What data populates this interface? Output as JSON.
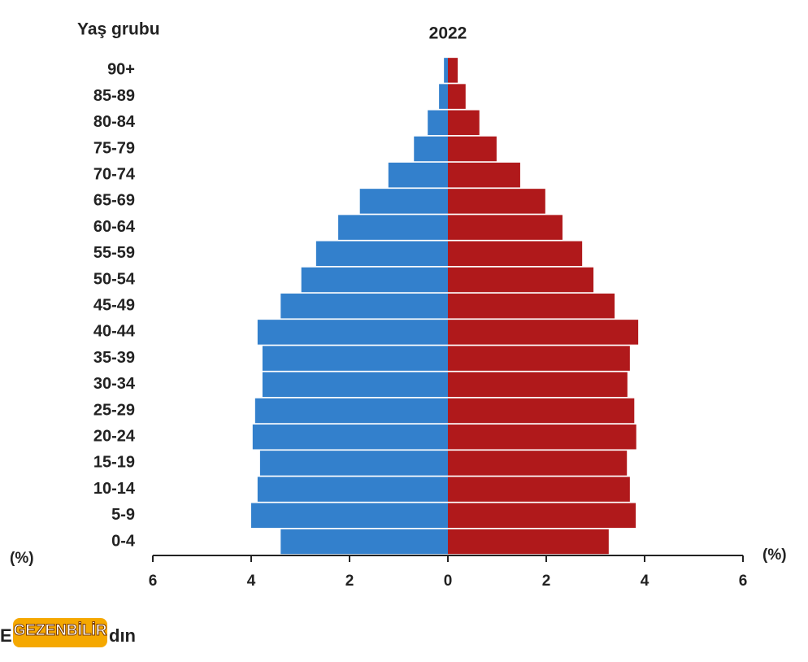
{
  "chart_data": {
    "type": "pyramid",
    "title": "2022",
    "y_label": "Yaş grubu",
    "x_label_left": "(%)",
    "x_label_right": "(%)",
    "categories": [
      "0-4",
      "5-9",
      "10-14",
      "15-19",
      "20-24",
      "25-29",
      "30-34",
      "35-39",
      "40-44",
      "45-49",
      "50-54",
      "55-59",
      "60-64",
      "65-69",
      "70-74",
      "75-79",
      "80-84",
      "85-89",
      "90+"
    ],
    "series": [
      {
        "side": "left",
        "color": "#3380cc",
        "values": [
          3.4,
          4.0,
          3.87,
          3.82,
          3.97,
          3.92,
          3.77,
          3.77,
          3.87,
          3.4,
          2.98,
          2.68,
          2.23,
          1.79,
          1.21,
          0.69,
          0.41,
          0.18,
          0.08
        ]
      },
      {
        "side": "right",
        "color": "#b0191b",
        "values": [
          3.27,
          3.82,
          3.7,
          3.64,
          3.83,
          3.79,
          3.65,
          3.7,
          3.87,
          3.39,
          2.96,
          2.73,
          2.33,
          1.98,
          1.47,
          0.99,
          0.64,
          0.36,
          0.2
        ]
      }
    ],
    "xlim": [
      -6,
      6
    ],
    "xticks": [
      {
        "value": -6,
        "label": "6"
      },
      {
        "value": -4,
        "label": "4"
      },
      {
        "value": -2,
        "label": "2"
      },
      0,
      2,
      4,
      6
    ]
  },
  "footer": {
    "left": "E",
    "logo": "GEZENBİLİR",
    "right": "dın"
  }
}
